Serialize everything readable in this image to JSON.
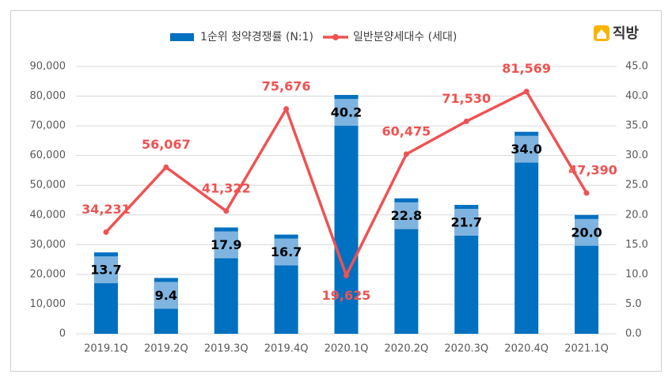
{
  "logo": "직방",
  "chart_data": {
    "type": "combo",
    "categories": [
      "2019.1Q",
      "2019.2Q",
      "2019.3Q",
      "2019.4Q",
      "2020.1Q",
      "2020.2Q",
      "2020.3Q",
      "2020.4Q",
      "2021.1Q"
    ],
    "series": [
      {
        "name": "1순위 청약경쟁률 (N:1)",
        "type": "bar",
        "axis": "y2",
        "color": "#0070c0",
        "values": [
          13.7,
          9.4,
          17.9,
          16.7,
          40.2,
          22.8,
          21.7,
          34.0,
          20.0
        ],
        "value_labels": [
          "13.7",
          "9.4",
          "17.9",
          "16.7",
          "40.2",
          "22.8",
          "21.7",
          "34.0",
          "20.0"
        ]
      },
      {
        "name": "일반분양세대수 (세대)",
        "type": "line",
        "color": "#f05252",
        "values": [
          34231,
          56067,
          41322,
          75676,
          19625,
          60475,
          71530,
          81569,
          47390
        ],
        "value_labels": [
          "34,231",
          "56,067",
          "41,322",
          "75,676",
          "19,625",
          "60,475",
          "71,530",
          "81,569",
          "47,390"
        ]
      }
    ],
    "ylim": [
      0,
      90000
    ],
    "yticks": [
      {
        "value": 0,
        "label": "0"
      },
      {
        "value": 10000,
        "label": "10,000"
      },
      {
        "value": 20000,
        "label": "20,000"
      },
      {
        "value": 30000,
        "label": "30,000"
      },
      {
        "value": 40000,
        "label": "40,000"
      },
      {
        "value": 50000,
        "label": "50,000"
      },
      {
        "value": 60000,
        "label": "60,000"
      },
      {
        "value": 70000,
        "label": "70,000"
      },
      {
        "value": 80000,
        "label": "80,000"
      },
      {
        "value": 90000,
        "label": "90,000"
      }
    ],
    "y2lim": [
      0,
      45
    ],
    "y2ticks": [
      {
        "value": 0,
        "label": "0.0"
      },
      {
        "value": 5,
        "label": "5.0"
      },
      {
        "value": 10,
        "label": "10.0"
      },
      {
        "value": 15,
        "label": "15.0"
      },
      {
        "value": 20,
        "label": "20.0"
      },
      {
        "value": 25,
        "label": "25.0"
      },
      {
        "value": 30,
        "label": "30.0"
      },
      {
        "value": 35,
        "label": "35.0"
      },
      {
        "value": 40,
        "label": "40.0"
      },
      {
        "value": 45,
        "label": "45.0"
      }
    ],
    "grid": true,
    "legend": "top"
  }
}
